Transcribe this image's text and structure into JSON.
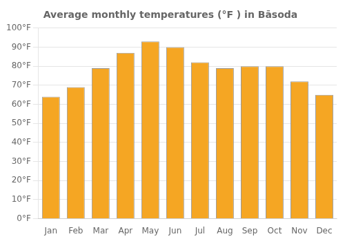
{
  "chart_data": {
    "type": "bar",
    "title": "Average monthly temperatures (°F ) in Bāsoda",
    "categories": [
      "Jan",
      "Feb",
      "Mar",
      "Apr",
      "May",
      "Jun",
      "Jul",
      "Aug",
      "Sep",
      "Oct",
      "Nov",
      "Dec"
    ],
    "values": [
      64,
      69,
      79,
      87,
      93,
      90,
      82,
      79,
      80,
      80,
      72,
      65
    ],
    "color": "#F5A623",
    "ylim": [
      0,
      100
    ],
    "yticks": [
      {
        "value": 0,
        "label": "0°F"
      },
      {
        "value": 10,
        "label": "10°F"
      },
      {
        "value": 20,
        "label": "20°F"
      },
      {
        "value": 30,
        "label": "30°F"
      },
      {
        "value": 40,
        "label": "40°F"
      },
      {
        "value": 50,
        "label": "50°F"
      },
      {
        "value": 60,
        "label": "60°F"
      },
      {
        "value": 70,
        "label": "70°F"
      },
      {
        "value": 80,
        "label": "80°F"
      },
      {
        "value": 90,
        "label": "90°F"
      },
      {
        "value": 100,
        "label": "100°F"
      }
    ],
    "grid": true
  }
}
